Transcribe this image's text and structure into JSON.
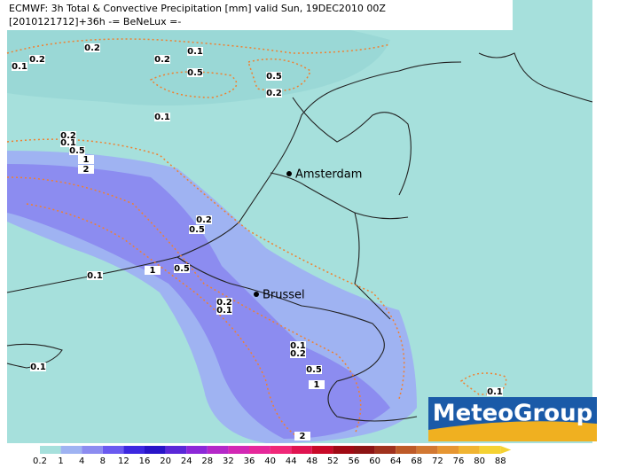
{
  "header": {
    "line1": "ECMWF: 3h Total & Convective Precipitation [mm] valid Sun, 19DEC2010 00Z",
    "line2": "[2010121712]+36h -= BeNeLux =-"
  },
  "cities": [
    "Amsterdam",
    "Brussel"
  ],
  "contour_labels": [
    "0.2",
    "0.2",
    "0.1",
    "0.1",
    "0.2",
    "0.5",
    "0.5",
    "0.2",
    "0.1",
    "0.2",
    "0.1",
    "0.5",
    "1",
    "2",
    "0.2",
    "0.5",
    "0.5",
    "1",
    "0.1",
    "0.2",
    "0.1",
    "0.1",
    "0.2",
    "0.5",
    "1",
    "0.1",
    "0.1",
    "2"
  ],
  "logo": "MeteoGroup",
  "colorbar": {
    "labels": [
      "0.2",
      "1",
      "4",
      "8",
      "12",
      "16",
      "20",
      "24",
      "28",
      "32",
      "36",
      "40",
      "44",
      "48",
      "52",
      "56",
      "60",
      "64",
      "68",
      "72",
      "76",
      "80",
      "88"
    ],
    "colors": [
      "#a6e0dc",
      "#9fb3f2",
      "#8c8cf0",
      "#6a5af0",
      "#3c28e0",
      "#2814c8",
      "#5a28d8",
      "#8c28d8",
      "#b428c8",
      "#d228b4",
      "#e6289a",
      "#f02878",
      "#e01450",
      "#c80a28",
      "#a00a14",
      "#8c1414",
      "#a0321e",
      "#be5a28",
      "#d27832",
      "#e69632",
      "#f0b432",
      "#f5d232"
    ]
  }
}
